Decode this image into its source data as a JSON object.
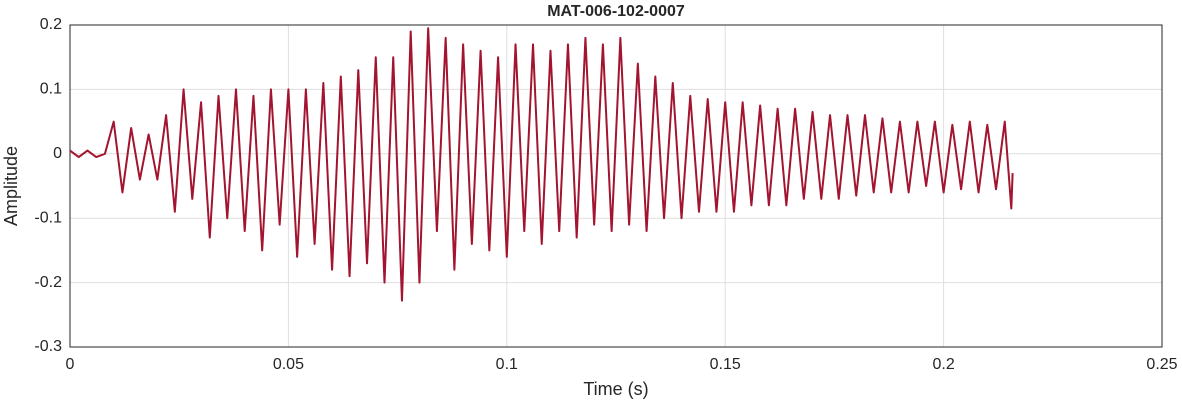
{
  "chart_data": {
    "type": "line",
    "title": "MAT-006-102-0007",
    "x_label": "Time (s)",
    "y_label": "Amplitude",
    "xlim": [
      0,
      0.25
    ],
    "xticks": [
      0,
      0.05,
      0.1,
      0.15,
      0.2,
      0.25
    ],
    "ylim": [
      -0.3,
      0.2
    ],
    "yticks": [
      -0.3,
      -0.2,
      -0.1,
      0,
      0.1,
      0.2
    ],
    "grid": true,
    "x": [
      0,
      0.002,
      0.004,
      0.006,
      0.008,
      0.01,
      0.012,
      0.014,
      0.016,
      0.018,
      0.02,
      0.022,
      0.024,
      0.026,
      0.028,
      0.03,
      0.032,
      0.034,
      0.036,
      0.038,
      0.04,
      0.042,
      0.044,
      0.046,
      0.048,
      0.05,
      0.052,
      0.054,
      0.056,
      0.058,
      0.06,
      0.062,
      0.064,
      0.066,
      0.068,
      0.07,
      0.072,
      0.074,
      0.076,
      0.078,
      0.08,
      0.082,
      0.084,
      0.086,
      0.088,
      0.09,
      0.092,
      0.094,
      0.096,
      0.098,
      0.1,
      0.102,
      0.104,
      0.106,
      0.108,
      0.11,
      0.112,
      0.114,
      0.116,
      0.118,
      0.12,
      0.122,
      0.124,
      0.126,
      0.128,
      0.13,
      0.132,
      0.134,
      0.136,
      0.138,
      0.14,
      0.142,
      0.144,
      0.146,
      0.148,
      0.15,
      0.152,
      0.154,
      0.156,
      0.158,
      0.16,
      0.162,
      0.164,
      0.166,
      0.168,
      0.17,
      0.172,
      0.174,
      0.176,
      0.178,
      0.18,
      0.182,
      0.184,
      0.186,
      0.188,
      0.19,
      0.192,
      0.194,
      0.196,
      0.198,
      0.2,
      0.202,
      0.204,
      0.206,
      0.208,
      0.21,
      0.212,
      0.214,
      0.2155,
      0.2158
    ],
    "series": [
      {
        "name": "Amplitude",
        "color": "#a2142f",
        "values": [
          0.005,
          -0.005,
          0.005,
          -0.005,
          0,
          0.05,
          -0.06,
          0.04,
          -0.04,
          0.03,
          -0.04,
          0.06,
          -0.09,
          0.1,
          -0.07,
          0.08,
          -0.13,
          0.09,
          -0.1,
          0.1,
          -0.12,
          0.09,
          -0.15,
          0.1,
          -0.11,
          0.1,
          -0.16,
          0.1,
          -0.14,
          0.11,
          -0.18,
          0.12,
          -0.19,
          0.13,
          -0.17,
          0.15,
          -0.2,
          0.15,
          -0.228,
          0.19,
          -0.2,
          0.195,
          -0.12,
          0.18,
          -0.18,
          0.17,
          -0.14,
          0.16,
          -0.15,
          0.15,
          -0.16,
          0.17,
          -0.12,
          0.17,
          -0.14,
          0.16,
          -0.12,
          0.17,
          -0.13,
          0.18,
          -0.11,
          0.17,
          -0.12,
          0.18,
          -0.11,
          0.14,
          -0.12,
          0.12,
          -0.1,
          0.11,
          -0.1,
          0.09,
          -0.09,
          0.085,
          -0.09,
          0.08,
          -0.09,
          0.08,
          -0.08,
          0.075,
          -0.08,
          0.07,
          -0.08,
          0.07,
          -0.07,
          0.065,
          -0.07,
          0.06,
          -0.07,
          0.06,
          -0.065,
          0.06,
          -0.06,
          0.055,
          -0.06,
          0.05,
          -0.06,
          0.05,
          -0.05,
          0.05,
          -0.06,
          0.045,
          -0.055,
          0.05,
          -0.06,
          0.045,
          -0.055,
          0.05,
          -0.085,
          -0.03
        ]
      }
    ]
  }
}
